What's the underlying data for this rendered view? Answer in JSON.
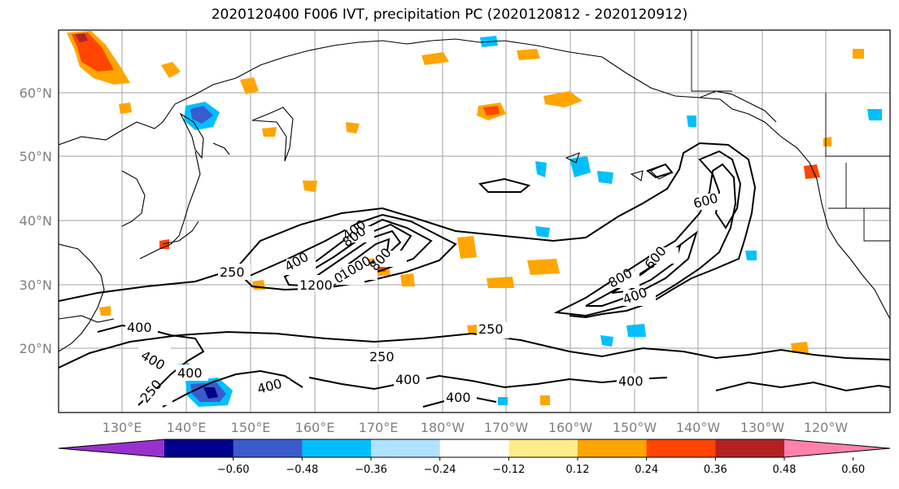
{
  "title": "2020120400 F006 IVT, precipitation PC (2020120812 - 2020120912)",
  "lat_labels": [
    "60°N",
    "50°N",
    "40°N",
    "30°N",
    "20°N"
  ],
  "lon_labels": [
    "130°E",
    "140°E",
    "150°E",
    "160°E",
    "170°E",
    "180°W",
    "170°W",
    "160°W",
    "150°W",
    "140°W",
    "130°W",
    "120°W"
  ],
  "contour_labels": [
    "250",
    "400",
    "400",
    "800",
    "1000",
    "1200",
    "1000",
    "800",
    "600",
    "400",
    "600",
    "800",
    "250",
    "400",
    "400",
    "250",
    "400",
    "250",
    "400",
    "400",
    "400"
  ],
  "colorbar": {
    "tick_labels": [
      "−0.60",
      "−0.48",
      "−0.36",
      "−0.24",
      "−0.12",
      "0.12",
      "0.24",
      "0.36",
      "0.48",
      "0.60"
    ],
    "colors": [
      "#9932cc",
      "#00008b",
      "#3a5bcd",
      "#00bfff",
      "#b0e2ff",
      "#ffffff",
      "#ffec8b",
      "#ffa500",
      "#ff4500",
      "#b22222",
      "#ff82ab"
    ]
  }
}
